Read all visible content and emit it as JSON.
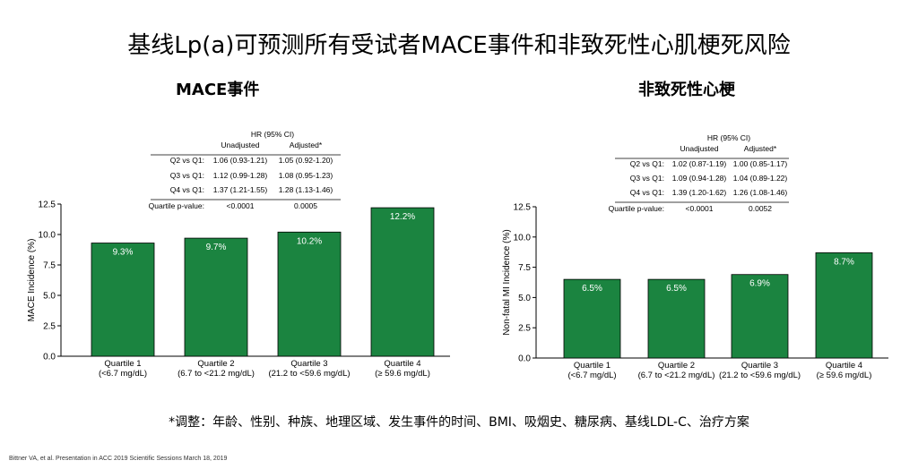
{
  "title": "基线Lp(a)可预测所有受试者MACE事件和非致死性心肌梗死风险",
  "bar_color": "#1b8440",
  "footnote": "*调整：年龄、性别、种族、地理区域、发生事件的时间、BMI、吸烟史、糖尿病、基线LDL-C、治疗方案",
  "citation": "Bittner VA, et al. Presentation in ACC 2019 Scientific Sessions March 18, 2019",
  "chart_data": [
    {
      "type": "bar",
      "title": "MACE事件",
      "ylabel": "MACE Incidence (%)",
      "xlabel": "",
      "ylim": [
        0,
        12.5
      ],
      "yticks": [
        "0.0",
        "2.5",
        "5.0",
        "7.5",
        "10.0",
        "12.5"
      ],
      "categories": [
        "Quartile 1\n(<6.7 mg/dL)",
        "Quartile 2\n(6.7 to <21.2 mg/dL)",
        "Quartile 3\n(21.2 to <59.6 mg/dL)",
        "Quartile 4\n(≥ 59.6 mg/dL)"
      ],
      "values": [
        9.3,
        9.7,
        10.2,
        12.2
      ],
      "value_labels": [
        "9.3%",
        "9.7%",
        "10.2%",
        "12.2%"
      ],
      "hr_table": {
        "header": "HR (95% CI)",
        "col_unadjusted": "Unadjusted",
        "col_adjusted": "Adjusted*",
        "rows": [
          {
            "label": "Q2 vs Q1:",
            "unadjusted": "1.06 (0.93-1.21)",
            "adjusted": "1.05 (0.92-1.20)"
          },
          {
            "label": "Q3 vs Q1:",
            "unadjusted": "1.12 (0.99-1.28)",
            "adjusted": "1.08 (0.95-1.23)"
          },
          {
            "label": "Q4 vs Q1:",
            "unadjusted": "1.37 (1.21-1.55)",
            "adjusted": "1.28 (1.13-1.46)"
          }
        ],
        "pvalue_label": "Quartile p-value:",
        "pvalue_unadjusted": "<0.0001",
        "pvalue_adjusted": "0.0005"
      }
    },
    {
      "type": "bar",
      "title": "非致死性心梗",
      "ylabel": "Non-fatal MI Incidence (%)",
      "xlabel": "",
      "ylim": [
        0,
        12.5
      ],
      "yticks": [
        "0.0",
        "2.5",
        "5.0",
        "7.5",
        "10.0",
        "12.5"
      ],
      "categories": [
        "Quartile 1\n(<6.7 mg/dL)",
        "Quartile 2\n(6.7 to <21.2 mg/dL)",
        "Quartile 3\n(21.2 to <59.6 mg/dL)",
        "Quartile 4\n(≥ 59.6 mg/dL)"
      ],
      "values": [
        6.5,
        6.5,
        6.9,
        8.7
      ],
      "value_labels": [
        "6.5%",
        "6.5%",
        "6.9%",
        "8.7%"
      ],
      "hr_table": {
        "header": "HR (95% CI)",
        "col_unadjusted": "Unadjusted",
        "col_adjusted": "Adjusted*",
        "rows": [
          {
            "label": "Q2 vs Q1:",
            "unadjusted": "1.02 (0.87-1.19)",
            "adjusted": "1.00 (0.85-1.17)"
          },
          {
            "label": "Q3 vs Q1:",
            "unadjusted": "1.09 (0.94-1.28)",
            "adjusted": "1.04 (0.89-1.22)"
          },
          {
            "label": "Q4 vs Q1:",
            "unadjusted": "1.39 (1.20-1.62)",
            "adjusted": "1.26 (1.08-1.46)"
          }
        ],
        "pvalue_label": "Quartile p-value:",
        "pvalue_unadjusted": "<0.0001",
        "pvalue_adjusted": "0.0052"
      }
    }
  ]
}
